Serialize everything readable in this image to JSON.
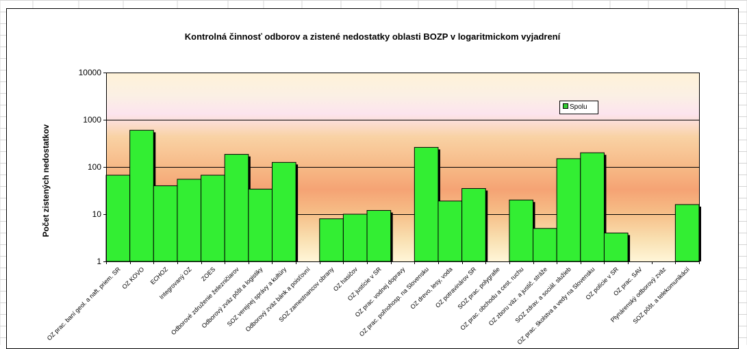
{
  "window": {
    "type": "spreadsheet-embedded-chart"
  },
  "colors": {
    "bar": "#33ee33",
    "bar_dark": "#1a9c1a",
    "shadow": "#000000",
    "legend_swatch": "#33cc33"
  },
  "chart_data": {
    "type": "bar",
    "title": "Kontrolná činnosť odborov a zistené nedostatky oblasti BOZP v logaritmickom vyjadrení",
    "xlabel": "",
    "ylabel": "Počet zistených nedostatkov",
    "yscale": "log",
    "ylim": [
      1,
      10000
    ],
    "yticks": [
      "10000",
      "1000",
      "100",
      "10",
      "1"
    ],
    "grid": true,
    "legend": {
      "position": "top-right",
      "entries": [
        "Spolu"
      ]
    },
    "categories": [
      "OZ prac. baní geol. a naft. priem. SR",
      "OZ KOVO",
      "ECHOZ",
      "Integrovaný OZ",
      "ZOES",
      "Odborové združenie železničiarov",
      "Odborový zväz pôšt a logistiky",
      "SOZ verejnej správy a kultúry",
      "Odborový zväz bánk a poisťovní",
      "SOZ zamestnancov obrany",
      "OZ hasičov",
      "OZ justície v SR",
      "OZ prac. vodnej dopravy",
      "OZ prac. poľnohosp. na Slovensku",
      "OZ drevo, lesy, voda",
      "OZ potravinárov SR",
      "SOZ prac. polygrafie",
      "OZ prac. obchodu a cest. ruchu",
      "OZ zboru väz. a justič. stráže",
      "SOZ zdrav. a sociál. služieb",
      "OZ prac. školstva a vedy na Slovensku",
      "OZ polície v SR",
      "OZ prac. SAV",
      "Plynárenský odborový zväz",
      "SOZ pôšt. a telekomunikácií"
    ],
    "series": [
      {
        "name": "Spolu",
        "values": [
          67,
          600,
          40,
          55,
          67,
          185,
          34,
          125,
          null,
          8,
          10,
          12,
          null,
          260,
          19,
          35,
          null,
          20,
          5,
          150,
          200,
          4,
          null,
          null,
          16
        ]
      }
    ]
  }
}
